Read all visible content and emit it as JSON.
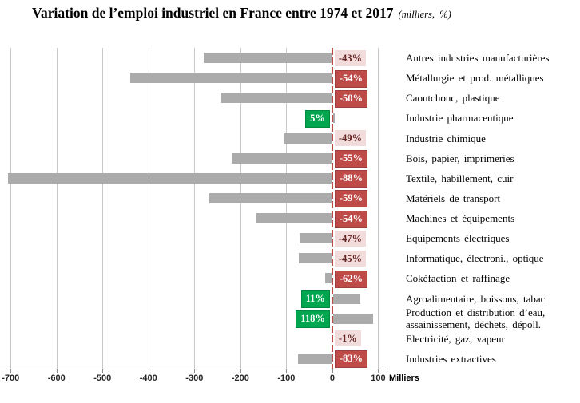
{
  "header": {
    "title": "Variation de l’emploi industriel en France entre 1974 et 2017",
    "subtitle": "(milliers,  %)"
  },
  "chart_data": {
    "type": "bar",
    "orientation": "horizontal",
    "title": "Variation de l’emploi industriel en France entre 1974 et 2017",
    "subtitle": "(milliers,  %)",
    "xlabel": "Milliers",
    "xlim": [
      -723,
      108
    ],
    "xticks": [
      -700,
      -600,
      -500,
      -400,
      -300,
      -200,
      -100,
      0,
      100
    ],
    "grid": true,
    "legend": "none",
    "rows": [
      {
        "label": "Autres industries manufacturières",
        "pct": "-43%",
        "value_milliers": -279,
        "badge_style": "pink"
      },
      {
        "label": "Métallurgie et prod. métalliques",
        "pct": "-54%",
        "value_milliers": -440,
        "badge_style": "red"
      },
      {
        "label": "Caoutchouc, plastique",
        "pct": "-50%",
        "value_milliers": -242,
        "badge_style": "red"
      },
      {
        "label": "Industrie pharmaceutique",
        "pct": "5%",
        "value_milliers": 4,
        "badge_style": "green"
      },
      {
        "label": "Industrie chimique",
        "pct": "-49%",
        "value_milliers": -106,
        "badge_style": "pink"
      },
      {
        "label": "Bois, papier, imprimeries",
        "pct": "-55%",
        "value_milliers": -218,
        "badge_style": "red"
      },
      {
        "label": "Textile, habillement, cuir",
        "pct": "-88%",
        "value_milliers": -706,
        "badge_style": "red"
      },
      {
        "label": "Matériels de transport",
        "pct": "-59%",
        "value_milliers": -268,
        "badge_style": "red"
      },
      {
        "label": "Machines et équipements",
        "pct": "-54%",
        "value_milliers": -165,
        "badge_style": "red"
      },
      {
        "label": "Equipements électriques",
        "pct": "-47%",
        "value_milliers": -71,
        "badge_style": "pink"
      },
      {
        "label": "Informatique, électroni., optique",
        "pct": "-45%",
        "value_milliers": -73,
        "badge_style": "pink"
      },
      {
        "label": "Cokéfaction et raffinage",
        "pct": "-62%",
        "value_milliers": -15,
        "badge_style": "red"
      },
      {
        "label": "Agroalimentaire, boissons, tabac",
        "pct": "11%",
        "value_milliers": 60,
        "badge_style": "green"
      },
      {
        "label": "Production et distribution d’eau, assainissement, déchets, dépoll.",
        "pct": "118%",
        "value_milliers": 87,
        "badge_style": "green"
      },
      {
        "label": "Electricité, gaz, vapeur",
        "pct": "-1%",
        "value_milliers": -2,
        "badge_style": "pink"
      },
      {
        "label": "Industries extractives",
        "pct": "-83%",
        "value_milliers": -75,
        "badge_style": "red"
      }
    ],
    "colors": {
      "bar": "#ABABAB",
      "grid": "#C9C9C9",
      "axis": "#8C8C8C",
      "zero_line": "#BE4B48",
      "badge_red_bg": "#BE4B48",
      "badge_red_border": "#A03E3B",
      "badge_red_text": "#FFFFFF",
      "badge_pink_bg": "#F2DCDB",
      "badge_pink_text": "#632423",
      "badge_green_bg": "#00A64F",
      "badge_green_border": "#008A3F",
      "badge_green_text": "#FFFFFF"
    }
  }
}
